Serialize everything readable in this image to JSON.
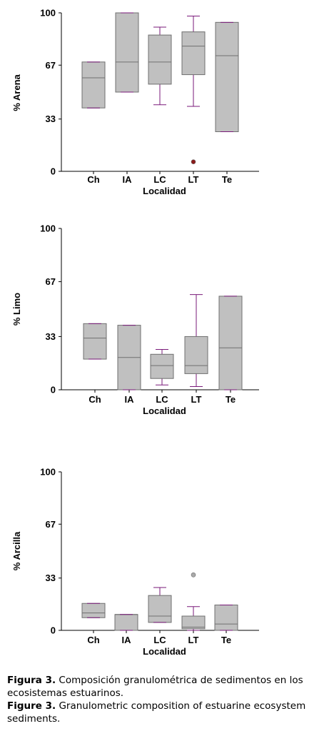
{
  "chart_data": [
    {
      "type": "box",
      "categories": [
        "Ch",
        "IA",
        "LC",
        "LT",
        "Te"
      ],
      "xlabel": "Localidad",
      "ylabel": "% Arena",
      "ylim": [
        0,
        100
      ],
      "yticks": [
        "0",
        "33",
        "67",
        "100"
      ],
      "boxes": [
        {
          "min": 40,
          "q1": 40,
          "median": 59,
          "q3": 69,
          "max": 69
        },
        {
          "min": 50,
          "q1": 50,
          "median": 69,
          "q3": 100,
          "max": 100
        },
        {
          "min": 42,
          "q1": 55,
          "median": 69,
          "q3": 86,
          "max": 91
        },
        {
          "min": 41,
          "q1": 61,
          "median": 79,
          "q3": 88,
          "max": 98
        },
        {
          "min": 25,
          "q1": 25,
          "median": 73,
          "q3": 94,
          "max": 94
        }
      ],
      "outliers": [
        {
          "category": "LT",
          "value": 6,
          "color": "#8b1a1a"
        }
      ]
    },
    {
      "type": "box",
      "categories": [
        "Ch",
        "IA",
        "LC",
        "LT",
        "Te"
      ],
      "xlabel": "Localidad",
      "ylabel": "% Limo",
      "ylim": [
        0,
        100
      ],
      "yticks": [
        "0",
        "33",
        "67",
        "100"
      ],
      "boxes": [
        {
          "min": 19,
          "q1": 19,
          "median": 32,
          "q3": 41,
          "max": 41
        },
        {
          "min": 0,
          "q1": 0,
          "median": 20,
          "q3": 40,
          "max": 40
        },
        {
          "min": 3,
          "q1": 7,
          "median": 15,
          "q3": 22,
          "max": 25
        },
        {
          "min": 2,
          "q1": 10,
          "median": 15,
          "q3": 33,
          "max": 59
        },
        {
          "min": 0,
          "q1": 0,
          "median": 26,
          "q3": 58,
          "max": 58
        }
      ],
      "outliers": []
    },
    {
      "type": "box",
      "categories": [
        "Ch",
        "IA",
        "LC",
        "LT",
        "Te"
      ],
      "xlabel": "Localidad",
      "ylabel": "% Arcilla",
      "ylim": [
        0,
        100
      ],
      "yticks": [
        "0",
        "33",
        "67",
        "100"
      ],
      "boxes": [
        {
          "min": 8,
          "q1": 8,
          "median": 11,
          "q3": 17,
          "max": 17
        },
        {
          "min": 0,
          "q1": 0,
          "median": 10,
          "q3": 10,
          "max": 10
        },
        {
          "min": 5,
          "q1": 5,
          "median": 9,
          "q3": 22,
          "max": 27
        },
        {
          "min": 0,
          "q1": 1,
          "median": 2,
          "q3": 9,
          "max": 15
        },
        {
          "min": 0,
          "q1": 0,
          "median": 4,
          "q3": 16,
          "max": 16
        }
      ],
      "outliers": [
        {
          "category": "LT",
          "value": 35,
          "color": "#aaaaaa"
        }
      ]
    }
  ],
  "caption": {
    "es_label": "Figura 3.",
    "es_text": " Composición granulométrica de sedimentos en los ecosistemas estuarinos.",
    "en_label": "Figure 3.",
    "en_text": " Granulometric composition of estuarine ecosystem sediments."
  },
  "colors": {
    "box_fill": "#c0c0c0",
    "box_border": "#6f6f6f",
    "whisker": "#7a1a7a",
    "axis": "#000000"
  }
}
